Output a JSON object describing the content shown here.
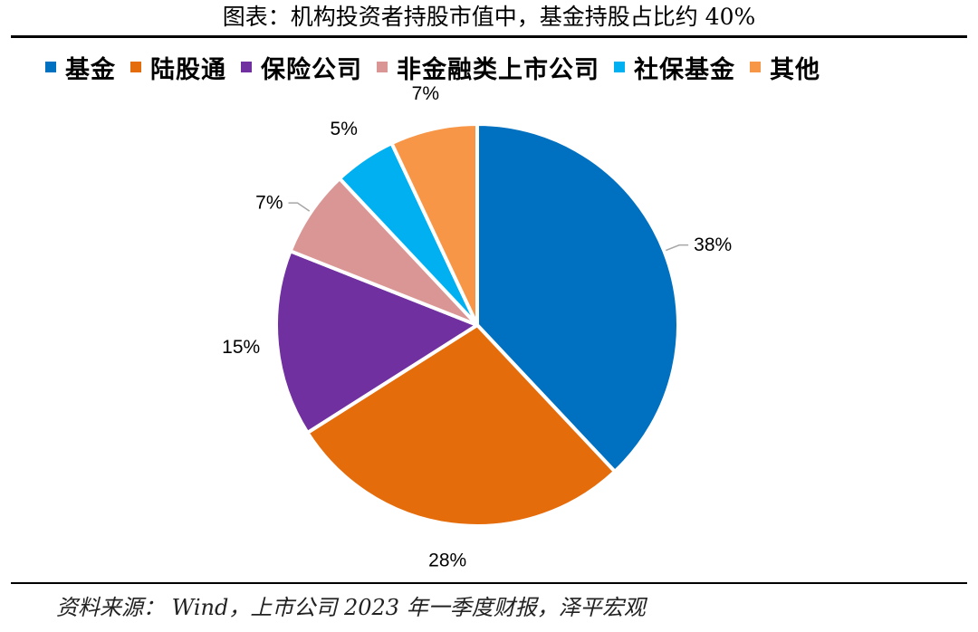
{
  "title": "图表：机构投资者持股市值中，基金持股占比约 40%",
  "source": "资料来源： Wind，上市公司 2023 年一季度财报，泽平宏观",
  "chart_data": {
    "type": "pie",
    "title": "图表：机构投资者持股市值中，基金持股占比约 40%",
    "legend_position": "top",
    "categories": [
      "基金",
      "陆股通",
      "保险公司",
      "非金融类上市公司",
      "社保基金",
      "其他"
    ],
    "values": [
      38,
      28,
      15,
      7,
      5,
      7
    ],
    "labels": [
      "38%",
      "28%",
      "15%",
      "7%",
      "5%",
      "7%"
    ],
    "colors": [
      "#0070C0",
      "#E46C0A",
      "#7030A0",
      "#D99694",
      "#00B0F0",
      "#F79646"
    ],
    "start_angle": "12 o'clock",
    "direction": "clockwise"
  }
}
